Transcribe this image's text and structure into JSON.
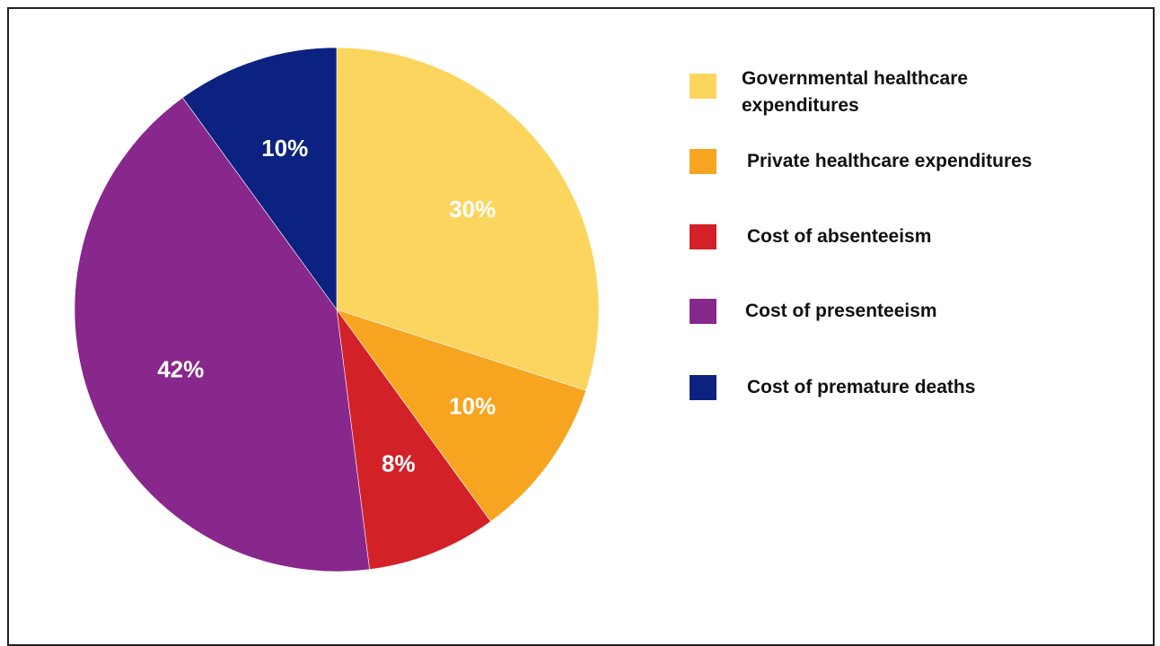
{
  "chart_data": {
    "type": "pie",
    "title": "",
    "start_angle_deg": 0,
    "direction": "clockwise",
    "slices": [
      {
        "label": "Governmental healthcare expenditures",
        "value": 30,
        "value_label": "30%",
        "color": "#FCD55F"
      },
      {
        "label": "Private healthcare expenditures",
        "value": 10,
        "value_label": "10%",
        "color": "#F7A520"
      },
      {
        "label": "Cost of absenteeism",
        "value": 8,
        "value_label": "8%",
        "color": "#D32128"
      },
      {
        "label": "Cost of presenteeism",
        "value": 42,
        "value_label": "42%",
        "color": "#88278C"
      },
      {
        "label": "Cost of premature deaths",
        "value": 10,
        "value_label": "10%",
        "color": "#0B2280"
      }
    ],
    "legend_position": "right"
  }
}
